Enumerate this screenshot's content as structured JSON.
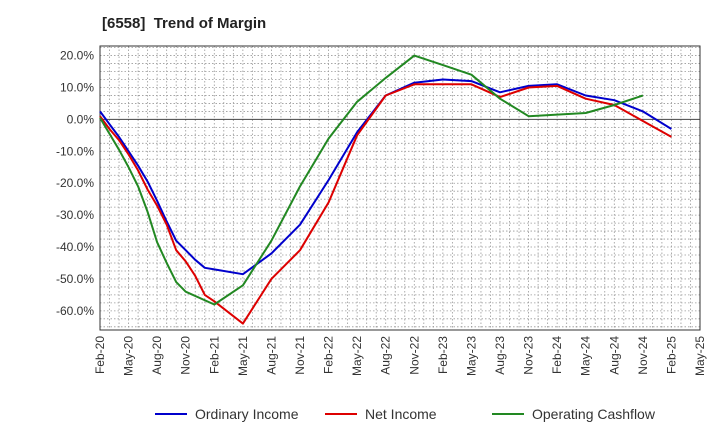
{
  "title": "[6558]  Trend of Margin",
  "chart_data": {
    "type": "line",
    "title": "[6558]  Trend of Margin",
    "xlabel": "",
    "ylabel": "",
    "ylim": [
      -66,
      23
    ],
    "yticks": [
      20,
      10,
      0,
      -10,
      -20,
      -30,
      -40,
      -50,
      -60
    ],
    "ytick_labels": [
      "20.0%",
      "10.0%",
      "0.0%",
      "-10.0%",
      "-20.0%",
      "-30.0%",
      "-40.0%",
      "-50.0%",
      "-60.0%"
    ],
    "xtick_labels": [
      "Feb-20",
      "May-20",
      "Aug-20",
      "Nov-20",
      "Feb-21",
      "May-21",
      "Aug-21",
      "Nov-21",
      "Feb-22",
      "May-22",
      "Aug-22",
      "Nov-22",
      "Feb-23",
      "May-23",
      "Aug-23",
      "Nov-23",
      "Feb-24",
      "May-24",
      "Aug-24",
      "Nov-24",
      "Feb-25",
      "May-25"
    ],
    "grid": true,
    "legend_position": "bottom",
    "series": [
      {
        "name": "Ordinary Income",
        "color": "#0000cc",
        "x": [
          "Feb-20",
          "Mar-20",
          "Apr-20",
          "May-20",
          "Jun-20",
          "Jul-20",
          "Aug-20",
          "Sep-20",
          "Oct-20",
          "Nov-20",
          "Dec-20",
          "Jan-21",
          "Feb-21",
          "May-21",
          "Aug-21",
          "Nov-21",
          "Feb-22",
          "May-22",
          "Aug-22",
          "Nov-22",
          "Feb-23",
          "May-23",
          "Aug-23",
          "Nov-23",
          "Feb-24",
          "May-24",
          "Aug-24",
          "Nov-24",
          "Feb-25"
        ],
        "values": [
          2.5,
          -1.5,
          -5.5,
          -10.0,
          -14.5,
          -19.5,
          -25.5,
          -32.0,
          -38.0,
          -41.0,
          -44.0,
          -46.5,
          -47.0,
          -48.5,
          -42.0,
          -33.0,
          -19.0,
          -4.0,
          7.5,
          11.5,
          12.5,
          12.0,
          8.5,
          10.5,
          11.0,
          7.5,
          6.0,
          2.5,
          -3.0
        ]
      },
      {
        "name": "Net Income",
        "color": "#dd0000",
        "x": [
          "Feb-20",
          "Mar-20",
          "Apr-20",
          "May-20",
          "Jun-20",
          "Jul-20",
          "Aug-20",
          "Sep-20",
          "Oct-20",
          "Nov-20",
          "Dec-20",
          "Jan-21",
          "Feb-21",
          "May-21",
          "Aug-21",
          "Nov-21",
          "Feb-22",
          "May-22",
          "Aug-22",
          "Nov-22",
          "Feb-23",
          "May-23",
          "Aug-23",
          "Nov-23",
          "Feb-24",
          "May-24",
          "Aug-24",
          "Nov-24",
          "Feb-25"
        ],
        "values": [
          1.0,
          -3.0,
          -6.5,
          -11.0,
          -16.0,
          -22.0,
          -27.0,
          -33.0,
          -41.0,
          -44.5,
          -49.0,
          -55.0,
          -57.0,
          -64.0,
          -50.0,
          -41.0,
          -26.0,
          -5.0,
          7.5,
          11.0,
          11.0,
          11.0,
          7.0,
          10.0,
          10.5,
          6.5,
          4.5,
          -0.5,
          -5.5
        ]
      },
      {
        "name": "Operating Cashflow",
        "color": "#228822",
        "x": [
          "Feb-20",
          "Mar-20",
          "Apr-20",
          "May-20",
          "Jun-20",
          "Jul-20",
          "Aug-20",
          "Sep-20",
          "Oct-20",
          "Nov-20",
          "Feb-21",
          "May-21",
          "Aug-21",
          "Nov-21",
          "Feb-22",
          "May-22",
          "Aug-22",
          "Nov-22",
          "Feb-23",
          "May-23",
          "Aug-23",
          "Nov-23",
          "Feb-24",
          "May-24",
          "Aug-24",
          "Nov-24"
        ],
        "values": [
          0.5,
          -4.5,
          -9.5,
          -15.0,
          -21.0,
          -29.0,
          -38.5,
          -45.0,
          -51.0,
          -54.0,
          -58.0,
          -52.0,
          -38.0,
          -21.0,
          -6.0,
          5.5,
          13.0,
          20.0,
          17.0,
          14.0,
          6.5,
          1.0,
          1.5,
          2.0,
          4.5,
          7.5
        ]
      }
    ]
  }
}
